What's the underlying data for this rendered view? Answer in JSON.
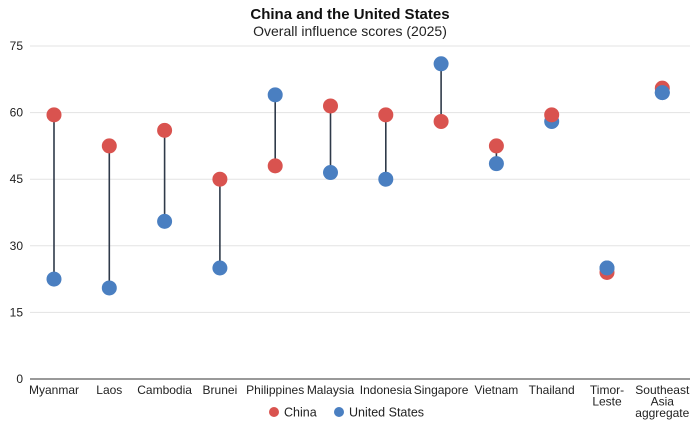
{
  "colors": {
    "china": "#d9534f",
    "us": "#4a7fc1",
    "connector": "#2f3a4a",
    "grid": "#e3e3e3",
    "axis": "#333333"
  },
  "chart_data": {
    "type": "dumbbell",
    "title": "China and the United States",
    "subtitle": "Overall influence scores (2025)",
    "xlabel": "",
    "ylabel": "",
    "ylim": [
      0,
      75
    ],
    "yticks": [
      0,
      15,
      30,
      45,
      60,
      75
    ],
    "grid": true,
    "legend_placement": "bottom",
    "categories": [
      [
        "Myanmar"
      ],
      [
        "Laos"
      ],
      [
        "Cambodia"
      ],
      [
        "Brunei"
      ],
      [
        "Philippines"
      ],
      [
        "Malaysia"
      ],
      [
        "Indonesia"
      ],
      [
        "Singapore"
      ],
      [
        "Vietnam"
      ],
      [
        "Thailand"
      ],
      [
        "Timor-",
        "Leste"
      ],
      [
        "Southeast",
        "Asia",
        "aggregate"
      ]
    ],
    "series": [
      {
        "name": "China",
        "values": [
          59.5,
          52.5,
          56,
          45,
          48,
          61.5,
          59.5,
          58,
          52.5,
          59.5,
          24,
          65.5
        ]
      },
      {
        "name": "United States",
        "values": [
          22.5,
          20.5,
          35.5,
          25,
          64,
          46.5,
          45,
          71,
          48.5,
          58,
          25,
          64.5
        ]
      }
    ]
  }
}
